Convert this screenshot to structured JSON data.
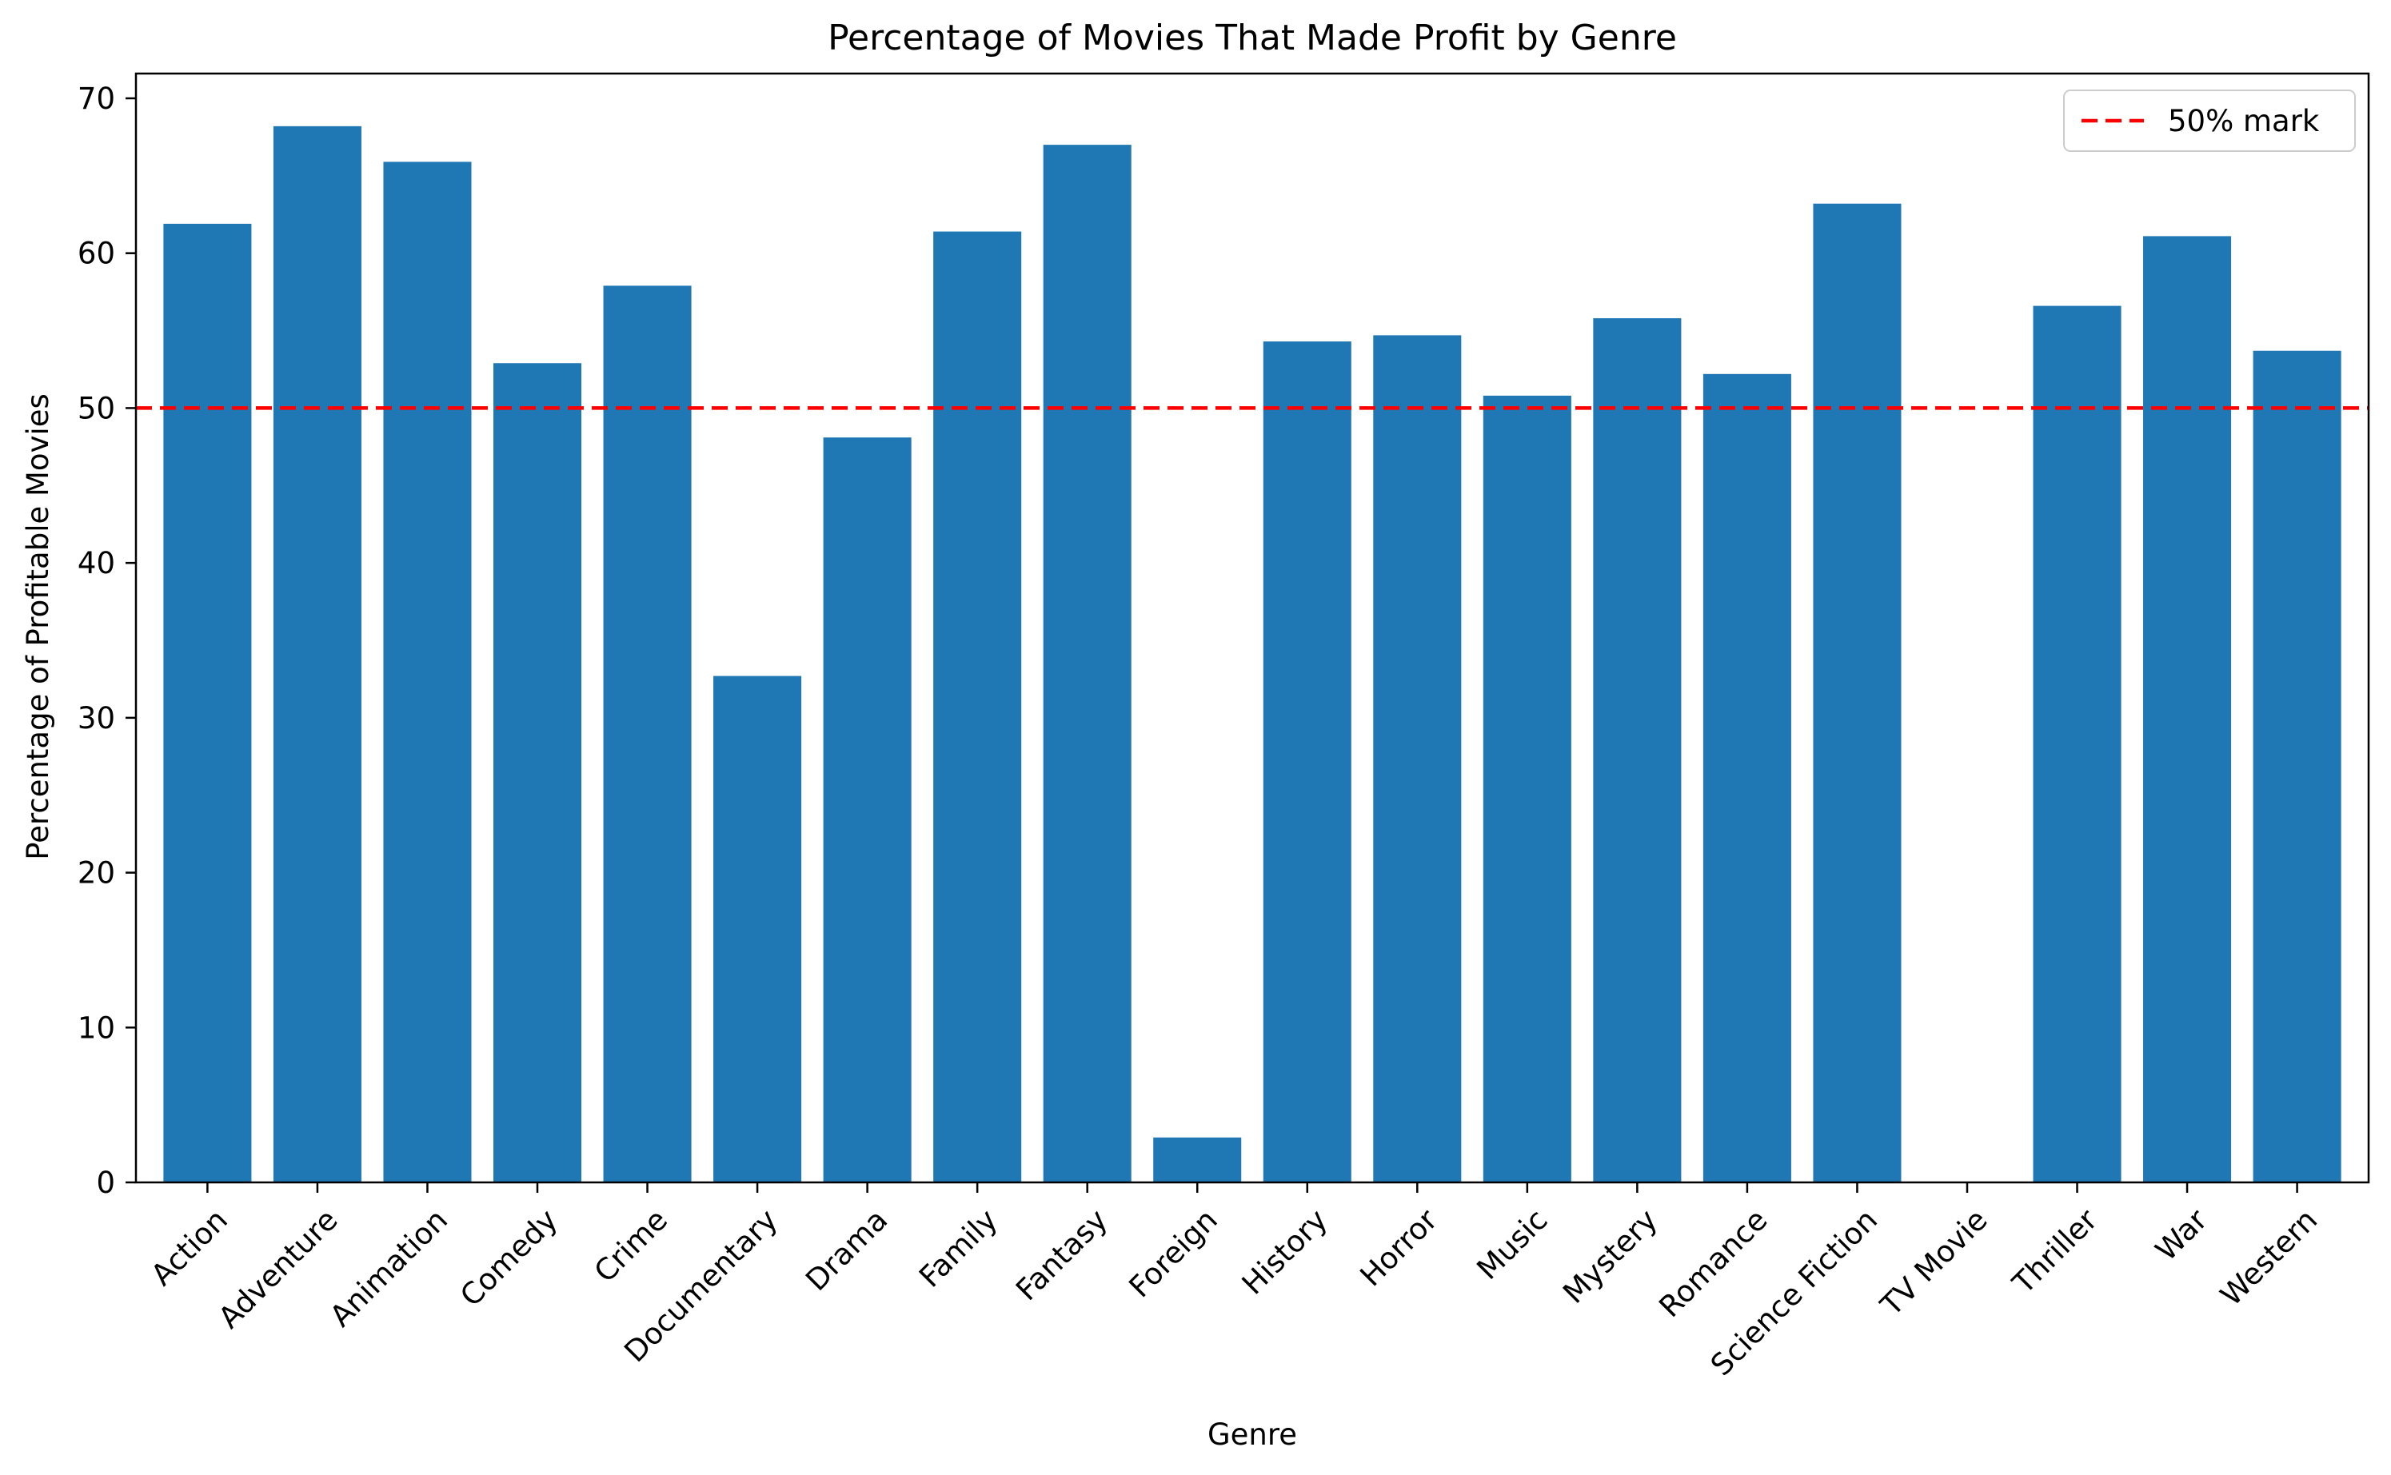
{
  "chart_data": {
    "type": "bar",
    "title": "Percentage of Movies That Made Profit by Genre",
    "xlabel": "Genre",
    "ylabel": "Percentage of Profitable Movies",
    "ylim": [
      0,
      71.6
    ],
    "yticks": [
      0,
      10,
      20,
      30,
      40,
      50,
      60,
      70
    ],
    "grid": false,
    "legend_position": "top-right",
    "bar_color": "#1f77b4",
    "categories": [
      "Action",
      "Adventure",
      "Animation",
      "Comedy",
      "Crime",
      "Documentary",
      "Drama",
      "Family",
      "Fantasy",
      "Foreign",
      "History",
      "Horror",
      "Music",
      "Mystery",
      "Romance",
      "Science Fiction",
      "TV Movie",
      "Thriller",
      "War",
      "Western"
    ],
    "series": [
      {
        "name": "",
        "values": [
          61.9,
          68.2,
          65.9,
          52.9,
          57.9,
          32.7,
          48.1,
          61.4,
          67.0,
          2.9,
          54.3,
          54.7,
          50.8,
          55.8,
          52.2,
          63.2,
          0,
          56.6,
          61.1,
          53.7
        ]
      }
    ],
    "reference_line": {
      "value": 50,
      "label": "50% mark",
      "color": "#ff0000",
      "style": "dashed"
    }
  }
}
